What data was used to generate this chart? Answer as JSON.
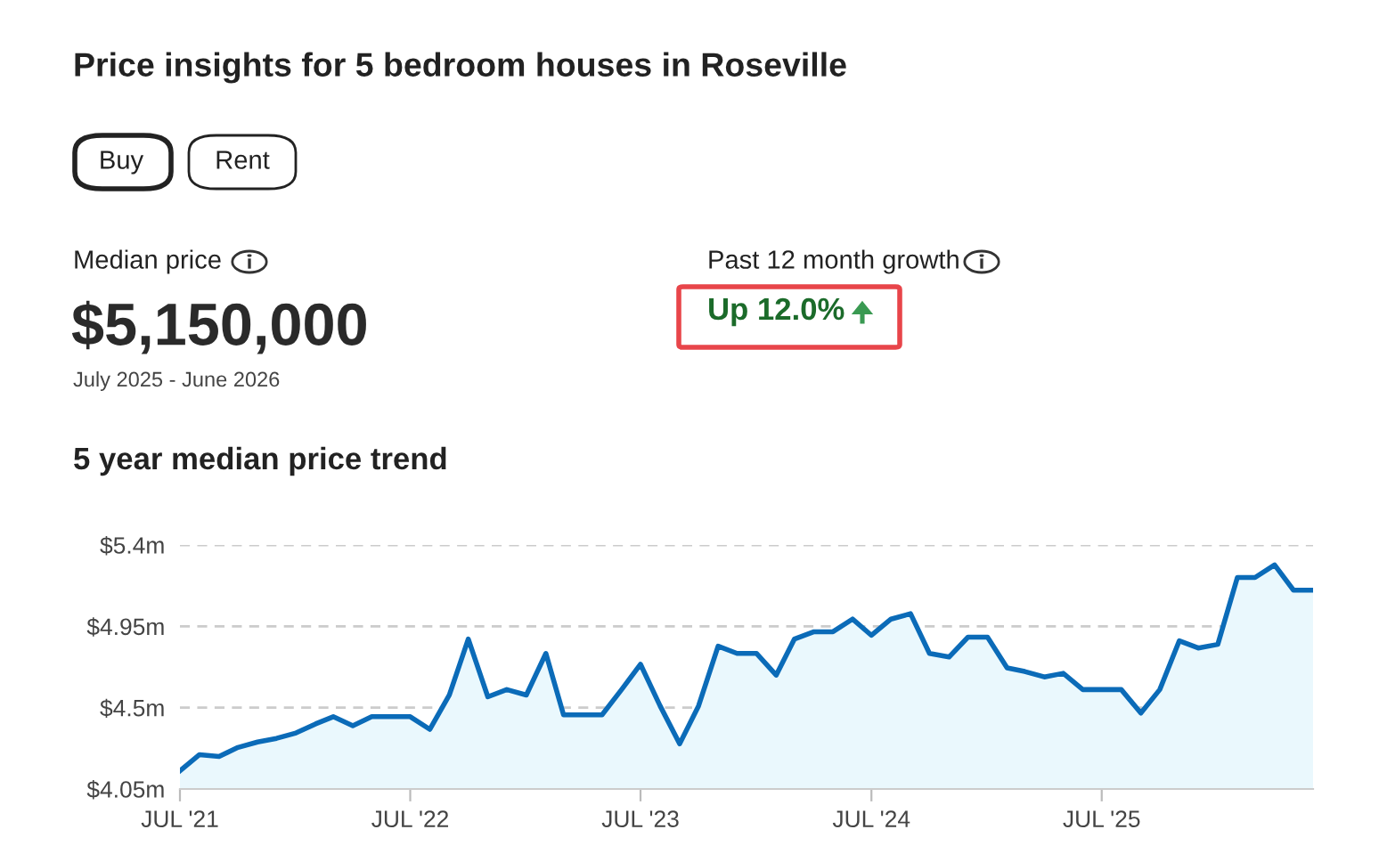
{
  "chart_data": {
    "type": "area",
    "title": "Price insights for 5 bedroom houses in Roseville",
    "subtitle": "5 year median price trend",
    "annotations": [
      "Buy",
      "Rent",
      "Median price",
      "$5,150,000",
      "July 2025 - June 2026",
      "Past 12 month growth",
      "Up 12.0%"
    ],
    "x": [
      "2021-07",
      "2021-08",
      "2021-09",
      "2021-10",
      "2021-11",
      "2021-12",
      "2022-01",
      "2022-02",
      "2022-03",
      "2022-04",
      "2022-05",
      "2022-06",
      "2022-07",
      "2022-08",
      "2022-09",
      "2022-10",
      "2022-11",
      "2022-12",
      "2023-01",
      "2023-02",
      "2023-03",
      "2023-04",
      "2023-05",
      "2023-06",
      "2023-07",
      "2023-08",
      "2023-09",
      "2023-10",
      "2023-11",
      "2023-12",
      "2024-01",
      "2024-02",
      "2024-03",
      "2024-04",
      "2024-05",
      "2024-06",
      "2024-07",
      "2024-08",
      "2024-09",
      "2024-10",
      "2024-11",
      "2024-12",
      "2025-01",
      "2025-02",
      "2025-03",
      "2025-04",
      "2025-05",
      "2025-06",
      "2025-07",
      "2025-08",
      "2025-09",
      "2025-10",
      "2025-11",
      "2025-12",
      "2026-01",
      "2026-02",
      "2026-03",
      "2026-04",
      "2026-05",
      "2026-06"
    ],
    "series": [
      {
        "color": "#0b6bb8",
        "values": [
          4.15,
          4.24,
          4.23,
          4.28,
          4.31,
          4.33,
          4.36,
          4.41,
          4.45,
          4.4,
          4.45,
          4.45,
          4.45,
          4.38,
          4.57,
          4.88,
          4.56,
          4.6,
          4.57,
          4.8,
          4.46,
          4.46,
          4.46,
          4.6,
          4.74,
          4.51,
          4.3,
          4.51,
          4.84,
          4.8,
          4.8,
          4.68,
          4.88,
          4.92,
          4.92,
          4.99,
          4.9,
          4.99,
          5.02,
          4.8,
          4.78,
          4.89,
          4.89,
          4.72,
          4.7,
          4.67,
          4.69,
          4.6,
          4.6,
          4.6,
          4.47,
          4.6,
          4.87,
          4.83,
          4.85,
          5.22,
          5.22,
          5.29,
          5.15,
          5.15
        ]
      }
    ],
    "xlim": [
      "2021-07",
      "2026-06"
    ],
    "xticks": [
      {
        "value": "2021-07",
        "label": "JUL '21"
      },
      {
        "value": "2022-07",
        "label": "JUL '22"
      },
      {
        "value": "2023-07",
        "label": "JUL '23"
      },
      {
        "value": "2024-07",
        "label": "JUL '24"
      },
      {
        "value": "2025-07",
        "label": "JUL '25"
      }
    ],
    "ylim": [
      4.05,
      5.4
    ],
    "yticks": [
      {
        "value": 4.05,
        "label": "$4.05m"
      },
      {
        "value": 4.5,
        "label": "$4.5m"
      },
      {
        "value": 4.95,
        "label": "$4.95m"
      },
      {
        "value": 5.4,
        "label": "$5.4m"
      }
    ],
    "grid": "y",
    "legend": false,
    "marker": "none",
    "line_style": "solid"
  }
}
